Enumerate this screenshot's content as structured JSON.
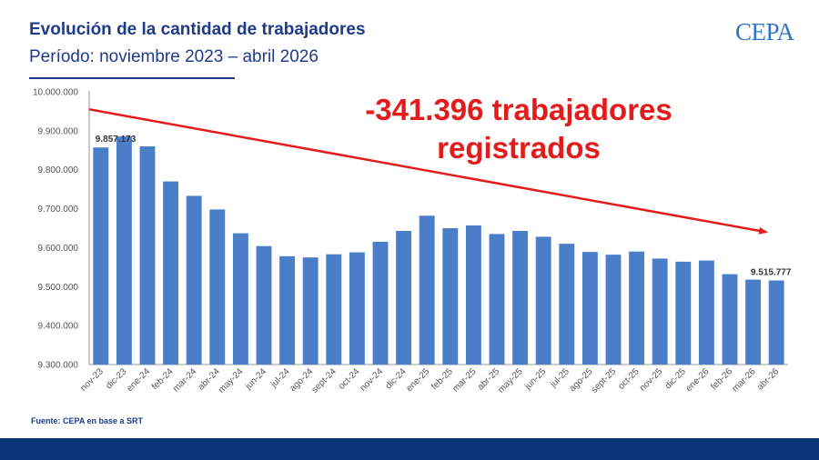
{
  "header": {
    "title": "Evolución de la cantidad de trabajadores",
    "subtitle": "Período: noviembre 2023 – abril 2026",
    "logo_text": "CEPA"
  },
  "callout": {
    "line1": "-341.396 trabajadores",
    "line2": "registrados",
    "color": "#e31b1b"
  },
  "source": "Fuente: CEPA en base a SRT",
  "colors": {
    "bar": "#4a7ec8",
    "title": "#1f3a8a",
    "footer": "#0a3378",
    "trend": "#e31b1b"
  },
  "chart_data": {
    "type": "bar",
    "title": "",
    "xlabel": "",
    "ylabel": "",
    "ylim": [
      9300000,
      10000000
    ],
    "yticks": [
      {
        "value": 9300000,
        "label": "9.300.000"
      },
      {
        "value": 9400000,
        "label": "9.400.000"
      },
      {
        "value": 9500000,
        "label": "9.500.000"
      },
      {
        "value": 9600000,
        "label": "9.600.000"
      },
      {
        "value": 9700000,
        "label": "9.700.000"
      },
      {
        "value": 9800000,
        "label": "9.800.000"
      },
      {
        "value": 9900000,
        "label": "9.900.000"
      },
      {
        "value": 10000000,
        "label": "10.000.000"
      }
    ],
    "grid": false,
    "categories": [
      "nov-23",
      "dic-23",
      "ene-24",
      "feb-24",
      "mar-24",
      "abr-24",
      "may-24",
      "jun-24",
      "jul-24",
      "ago-24",
      "sept-24",
      "oct-24",
      "nov-24",
      "dic-24",
      "ene-25",
      "feb-25",
      "mar-25",
      "abr-25",
      "may-25",
      "jun-25",
      "jul-25",
      "ago-25",
      "sept-25",
      "oct-25",
      "nov-25",
      "dic-25",
      "ene-26",
      "feb-26",
      "mar-26",
      "abr-26"
    ],
    "values": [
      9857173,
      9885000,
      9860000,
      9770000,
      9733000,
      9698000,
      9637000,
      9604000,
      9578000,
      9575000,
      9583000,
      9588000,
      9615000,
      9643000,
      9682000,
      9650000,
      9657000,
      9635000,
      9643000,
      9628000,
      9610000,
      9589000,
      9582000,
      9590000,
      9572000,
      9564000,
      9567000,
      9532000,
      9518000,
      9515777
    ],
    "data_labels": [
      {
        "index": 0,
        "text": "9.857.173"
      },
      {
        "index": 29,
        "text": "9.515.777"
      }
    ],
    "trend_arrow": {
      "from_value": 9955000,
      "to_value": 9640000
    }
  }
}
